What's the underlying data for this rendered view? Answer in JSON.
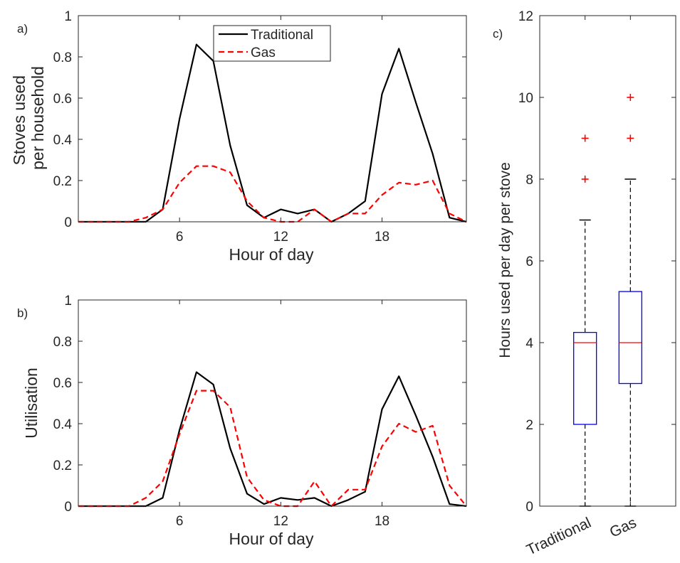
{
  "chart_data": [
    {
      "panel_label": "a)",
      "type": "line",
      "title": "",
      "xlabel": "Hour of day",
      "ylabel_lines": [
        "Stoves used",
        "per household"
      ],
      "xlim": [
        0,
        23
      ],
      "ylim": [
        0,
        1
      ],
      "xticks": [
        6,
        12,
        18
      ],
      "yticks": [
        0,
        0.2,
        0.4,
        0.6,
        0.8,
        1
      ],
      "ytick_labels": [
        "0",
        "0.2",
        "0.4",
        "0.6",
        "0.8",
        "1"
      ],
      "legend": {
        "placement": "top-center",
        "entries": [
          "Traditional",
          "Gas"
        ]
      },
      "x": [
        0,
        1,
        2,
        3,
        4,
        5,
        6,
        7,
        8,
        9,
        10,
        11,
        12,
        13,
        14,
        15,
        16,
        17,
        18,
        19,
        20,
        21,
        22,
        23
      ],
      "series": [
        {
          "name": "Traditional",
          "color": "#000000",
          "style": "solid",
          "values": [
            0,
            0,
            0,
            0,
            0,
            0.06,
            0.5,
            0.86,
            0.78,
            0.37,
            0.08,
            0.02,
            0.06,
            0.04,
            0.06,
            0,
            0.04,
            0.1,
            0.62,
            0.84,
            0.58,
            0.33,
            0.02,
            0
          ]
        },
        {
          "name": "Gas",
          "color": "#ff0000",
          "style": "dashed",
          "values": [
            0,
            0,
            0,
            0,
            0.02,
            0.06,
            0.19,
            0.27,
            0.27,
            0.24,
            0.1,
            0.02,
            0,
            0,
            0.06,
            0,
            0.04,
            0.04,
            0.13,
            0.19,
            0.18,
            0.2,
            0.04,
            0
          ]
        }
      ]
    },
    {
      "panel_label": "b)",
      "type": "line",
      "title": "",
      "xlabel": "Hour of day",
      "ylabel_lines": [
        "Utilisation"
      ],
      "xlim": [
        0,
        23
      ],
      "ylim": [
        0,
        1
      ],
      "xticks": [
        6,
        12,
        18
      ],
      "yticks": [
        0,
        0.2,
        0.4,
        0.6,
        0.8,
        1
      ],
      "ytick_labels": [
        "0",
        "0.2",
        "0.4",
        "0.6",
        "0.8",
        "1"
      ],
      "x": [
        0,
        1,
        2,
        3,
        4,
        5,
        6,
        7,
        8,
        9,
        10,
        11,
        12,
        13,
        14,
        15,
        16,
        17,
        18,
        19,
        20,
        21,
        22,
        23
      ],
      "series": [
        {
          "name": "Traditional",
          "color": "#000000",
          "style": "solid",
          "values": [
            0,
            0,
            0,
            0,
            0,
            0.04,
            0.37,
            0.65,
            0.59,
            0.28,
            0.06,
            0.01,
            0.04,
            0.03,
            0.04,
            0,
            0.03,
            0.07,
            0.47,
            0.63,
            0.44,
            0.24,
            0.01,
            0
          ]
        },
        {
          "name": "Gas",
          "color": "#ff0000",
          "style": "dashed",
          "values": [
            0,
            0,
            0,
            0,
            0.04,
            0.12,
            0.35,
            0.56,
            0.56,
            0.48,
            0.14,
            0.03,
            0,
            0,
            0.12,
            0,
            0.08,
            0.08,
            0.29,
            0.4,
            0.36,
            0.39,
            0.1,
            0
          ]
        }
      ]
    },
    {
      "panel_label": "c)",
      "type": "box",
      "title": "",
      "xlabel": "",
      "ylabel": "Hours used per day per stove",
      "ylim": [
        0,
        12
      ],
      "yticks": [
        0,
        2,
        4,
        6,
        8,
        10,
        12
      ],
      "ytick_labels": [
        "0",
        "2",
        "4",
        "6",
        "8",
        "10",
        "12"
      ],
      "categories": [
        "Traditional",
        "Gas"
      ],
      "boxes": [
        {
          "name": "Traditional",
          "min": 0,
          "q1": 2,
          "median": 4,
          "q3": 4.25,
          "max": 7,
          "outliers": [
            8,
            9
          ]
        },
        {
          "name": "Gas",
          "min": 0,
          "q1": 3,
          "median": 4,
          "q3": 5.25,
          "max": 8,
          "outliers": [
            9,
            10
          ]
        }
      ],
      "box_color": "#0000ff",
      "median_color": "#ff0000",
      "outlier_color": "#ff0000",
      "whisker_color": "#000000"
    }
  ]
}
